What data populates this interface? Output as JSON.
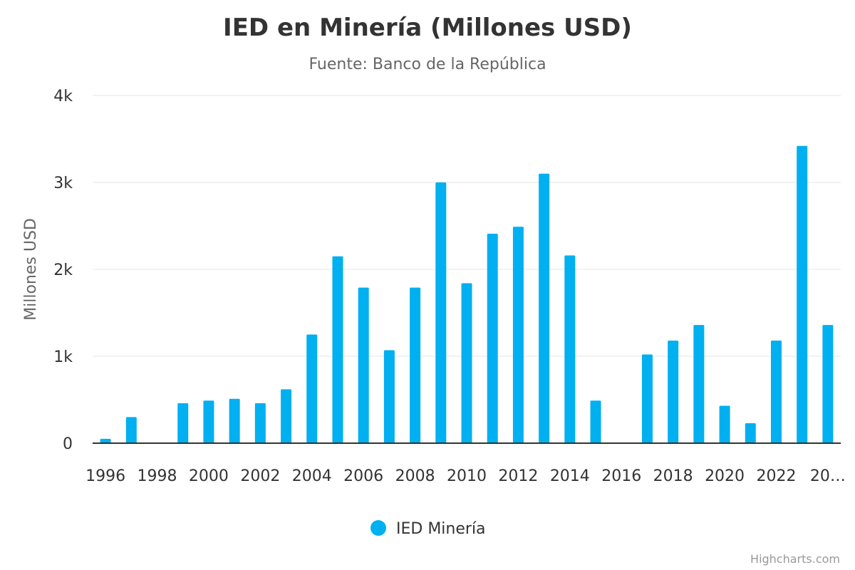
{
  "chart_data": {
    "type": "bar",
    "title": "IED en Minería (Millones USD)",
    "subtitle": "Fuente: Banco de la República",
    "ylabel": "Millones USD",
    "xlabel": "",
    "ylim": [
      0,
      4000
    ],
    "yticks": [
      {
        "value": 0,
        "label": "0"
      },
      {
        "value": 1000,
        "label": "1k"
      },
      {
        "value": 2000,
        "label": "2k"
      },
      {
        "value": 3000,
        "label": "3k"
      },
      {
        "value": 4000,
        "label": "4k"
      }
    ],
    "categories": [
      "1996",
      "1997",
      "1998",
      "1999",
      "2000",
      "2001",
      "2002",
      "2003",
      "2004",
      "2005",
      "2006",
      "2007",
      "2008",
      "2009",
      "2010",
      "2011",
      "2012",
      "2013",
      "2014",
      "2015",
      "2016",
      "2017",
      "2018",
      "2019",
      "2020",
      "2021",
      "2022",
      "2023",
      "2024"
    ],
    "xtick_labels": [
      "1996",
      "",
      "1998",
      "",
      "2000",
      "",
      "2002",
      "",
      "2004",
      "",
      "2006",
      "",
      "2008",
      "",
      "2010",
      "",
      "2012",
      "",
      "2014",
      "",
      "2016",
      "",
      "2018",
      "",
      "2020",
      "",
      "2022",
      "",
      "20…"
    ],
    "series": [
      {
        "name": "IED Minería",
        "color": "#00b0f0",
        "values": [
          50,
          300,
          0,
          460,
          490,
          510,
          460,
          620,
          1250,
          2150,
          1790,
          1070,
          1790,
          3000,
          1840,
          2410,
          2490,
          3100,
          2160,
          490,
          0,
          1020,
          1180,
          1360,
          430,
          230,
          1180,
          3420,
          1360
        ]
      }
    ],
    "legend": "bottom-center",
    "grid": true
  },
  "credits": "Highcharts.com",
  "colors": {
    "bar": "#00b0f0",
    "grid": "#e6e6e6",
    "axis": "#333333"
  }
}
